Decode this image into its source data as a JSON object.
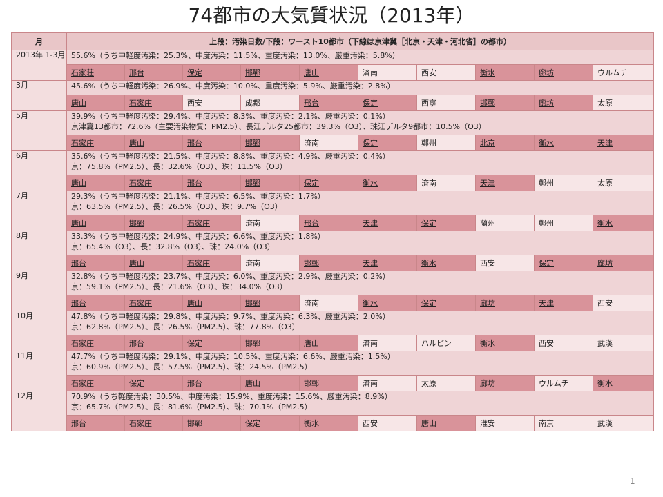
{
  "title": "74都市の大気質状況（2013年）",
  "header": {
    "month": "月",
    "description": "上段：汚染日数/下段：ワースト10都市（下線は京津冀［北京・天津・河北省］の都市）"
  },
  "rows": [
    {
      "month": "2013年 1-3月",
      "summary": [
        "55.6%（うち中軽度汚染：25.3%、中度汚染：11.5%、重度汚染：13.0%、厳重汚染：5.8%）"
      ],
      "cities": [
        {
          "name": "石家荘",
          "bj": true
        },
        {
          "name": "邢台",
          "bj": true
        },
        {
          "name": "保定",
          "bj": true
        },
        {
          "name": "邯鄲",
          "bj": true
        },
        {
          "name": "唐山",
          "bj": true
        },
        {
          "name": "済南",
          "bj": false
        },
        {
          "name": "西安",
          "bj": false
        },
        {
          "name": "衡水",
          "bj": true
        },
        {
          "name": "廊坊",
          "bj": true
        },
        {
          "name": "ウルムチ",
          "bj": false
        }
      ]
    },
    {
      "month": "3月",
      "summary": [
        "45.6%（うち中軽度汚染：26.9%、中度汚染：10.0%、重度汚染：5.9%、厳重汚染：2.8%）"
      ],
      "cities": [
        {
          "name": "唐山",
          "bj": true
        },
        {
          "name": "石家庄",
          "bj": true
        },
        {
          "name": "西安",
          "bj": false
        },
        {
          "name": "成都",
          "bj": false
        },
        {
          "name": "邢台",
          "bj": true
        },
        {
          "name": "保定",
          "bj": true
        },
        {
          "name": "西寧",
          "bj": false
        },
        {
          "name": "邯鄲",
          "bj": true
        },
        {
          "name": "廊坊",
          "bj": true
        },
        {
          "name": "太原",
          "bj": false
        }
      ]
    },
    {
      "month": "5月",
      "summary": [
        "39.9%（うち中軽度汚染：29.4%、中度汚染：8.3%、重度汚染：2.1%、厳重汚染：0.1%）",
        "京津冀13都市：72.6%（主要汚染物質：PM2.5）、長江デルタ25都市：39.3%（O3）、珠江デルタ9都市：10.5%（O3）"
      ],
      "cities": [
        {
          "name": "石家庄",
          "bj": true
        },
        {
          "name": "唐山",
          "bj": true
        },
        {
          "name": "邢台",
          "bj": true
        },
        {
          "name": "邯鄲",
          "bj": true
        },
        {
          "name": "済南",
          "bj": false
        },
        {
          "name": "保定",
          "bj": true
        },
        {
          "name": "鄭州",
          "bj": false
        },
        {
          "name": "北京",
          "bj": true
        },
        {
          "name": "衡水",
          "bj": true
        },
        {
          "name": "天津",
          "bj": true
        }
      ]
    },
    {
      "month": "6月",
      "summary": [
        "35.6%（うち中軽度汚染：21.5%、中度汚染：8.8%、重度汚染：4.9%、厳重汚染：0.4%）",
        "京：75.8%（PM2.5）、長：32.6%（O3）、珠：11.5%（O3）"
      ],
      "cities": [
        {
          "name": "唐山",
          "bj": true
        },
        {
          "name": "石家庄",
          "bj": true
        },
        {
          "name": "邢台",
          "bj": true
        },
        {
          "name": "邯鄲",
          "bj": true
        },
        {
          "name": "保定",
          "bj": true
        },
        {
          "name": "衡水",
          "bj": true
        },
        {
          "name": "済南",
          "bj": false
        },
        {
          "name": "天津",
          "bj": true
        },
        {
          "name": "鄭州",
          "bj": false
        },
        {
          "name": "太原",
          "bj": false
        }
      ]
    },
    {
      "month": "7月",
      "summary": [
        "29.3%（うち中軽度汚染：21.1%、中度汚染：6.5%、重度汚染：1.7%）",
        "京：63.5%（PM2.5）、長：26.5%（O3）、珠：9.7%（O3）"
      ],
      "cities": [
        {
          "name": "唐山",
          "bj": true
        },
        {
          "name": "邯鄲",
          "bj": true
        },
        {
          "name": "石家庄",
          "bj": true
        },
        {
          "name": "済南",
          "bj": false
        },
        {
          "name": "邢台",
          "bj": true
        },
        {
          "name": "天津",
          "bj": true
        },
        {
          "name": "保定",
          "bj": true
        },
        {
          "name": "蘭州",
          "bj": false
        },
        {
          "name": "鄭州",
          "bj": false
        },
        {
          "name": "衡水",
          "bj": true
        }
      ]
    },
    {
      "month": "8月",
      "summary": [
        "33.3%（うち中軽度汚染：24.9%、中度汚染：6.6%、重度汚染：1.8%）",
        "京：65.4%（O3）、長：32.8%（O3）、珠：24.0%（O3）"
      ],
      "cities": [
        {
          "name": "邢台",
          "bj": true
        },
        {
          "name": "唐山",
          "bj": true
        },
        {
          "name": "石家庄",
          "bj": true
        },
        {
          "name": "済南",
          "bj": false
        },
        {
          "name": "邯鄲",
          "bj": true
        },
        {
          "name": "天津",
          "bj": true
        },
        {
          "name": "衡水",
          "bj": true
        },
        {
          "name": "西安",
          "bj": false
        },
        {
          "name": "保定",
          "bj": true
        },
        {
          "name": "廊坊",
          "bj": true
        }
      ]
    },
    {
      "month": "9月",
      "summary": [
        "32.8%（うち中軽度汚染：23.7%、中度汚染：6.0%、重度汚染：2.9%、厳重汚染：0.2%）",
        "京：59.1%（PM2.5）、長：21.6%（O3）、珠：34.0%（O3）"
      ],
      "cities": [
        {
          "name": "邢台",
          "bj": true
        },
        {
          "name": "石家庄",
          "bj": true
        },
        {
          "name": "唐山",
          "bj": true
        },
        {
          "name": "邯鄲",
          "bj": true
        },
        {
          "name": "済南",
          "bj": false
        },
        {
          "name": "衡水",
          "bj": true
        },
        {
          "name": "保定",
          "bj": true
        },
        {
          "name": "廊坊",
          "bj": true
        },
        {
          "name": "天津",
          "bj": true
        },
        {
          "name": "西安",
          "bj": false
        }
      ]
    },
    {
      "month": "10月",
      "summary": [
        "47.8%（うち中軽度汚染：29.8%、中度汚染：9.7%、重度汚染：6.3%、厳重汚染：2.0%）",
        "京：62.8%（PM2.5）、長：26.5%（PM2.5）、珠：77.8%（O3）"
      ],
      "cities": [
        {
          "name": "石家庄",
          "bj": true
        },
        {
          "name": "邢台",
          "bj": true
        },
        {
          "name": "保定",
          "bj": true
        },
        {
          "name": "邯鄲",
          "bj": true
        },
        {
          "name": "唐山",
          "bj": true
        },
        {
          "name": "済南",
          "bj": false
        },
        {
          "name": "ハルピン",
          "bj": false
        },
        {
          "name": "衡水",
          "bj": true
        },
        {
          "name": "西安",
          "bj": false
        },
        {
          "name": "武漢",
          "bj": false
        }
      ]
    },
    {
      "month": "11月",
      "summary": [
        "47.7%（うち中軽度汚染：29.1%、中度汚染：10.5%、重度汚染：6.6%、厳重汚染：1.5%）",
        "京：60.9%（PM2.5）、長：57.5%（PM2.5）、珠：24.5%（PM2.5）"
      ],
      "cities": [
        {
          "name": "石家庄",
          "bj": true
        },
        {
          "name": "保定",
          "bj": true
        },
        {
          "name": "邢台",
          "bj": true
        },
        {
          "name": "唐山",
          "bj": true
        },
        {
          "name": "邯鄲",
          "bj": true
        },
        {
          "name": "済南",
          "bj": false
        },
        {
          "name": "太原",
          "bj": false
        },
        {
          "name": "廊坊",
          "bj": true
        },
        {
          "name": "ウルムチ",
          "bj": false
        },
        {
          "name": "衡水",
          "bj": true
        }
      ]
    },
    {
      "month": "12月",
      "summary": [
        "70.9%（うち軽度汚染：30.5%、中度汚染：15.9%、重度汚染：15.6%、厳重汚染：8.9%）",
        "京：65.7%（PM2.5）、長：81.6%（PM2.5）、珠：70.1%（PM2.5）"
      ],
      "cities": [
        {
          "name": "邢台",
          "bj": true
        },
        {
          "name": "石家庄",
          "bj": true
        },
        {
          "name": "邯鄲",
          "bj": true
        },
        {
          "name": "保定",
          "bj": true
        },
        {
          "name": "衡水",
          "bj": true
        },
        {
          "name": "西安",
          "bj": false
        },
        {
          "name": "唐山",
          "bj": true
        },
        {
          "name": "淮安",
          "bj": false
        },
        {
          "name": "南京",
          "bj": false
        },
        {
          "name": "武漢",
          "bj": false
        }
      ]
    }
  ],
  "page_number": "1"
}
